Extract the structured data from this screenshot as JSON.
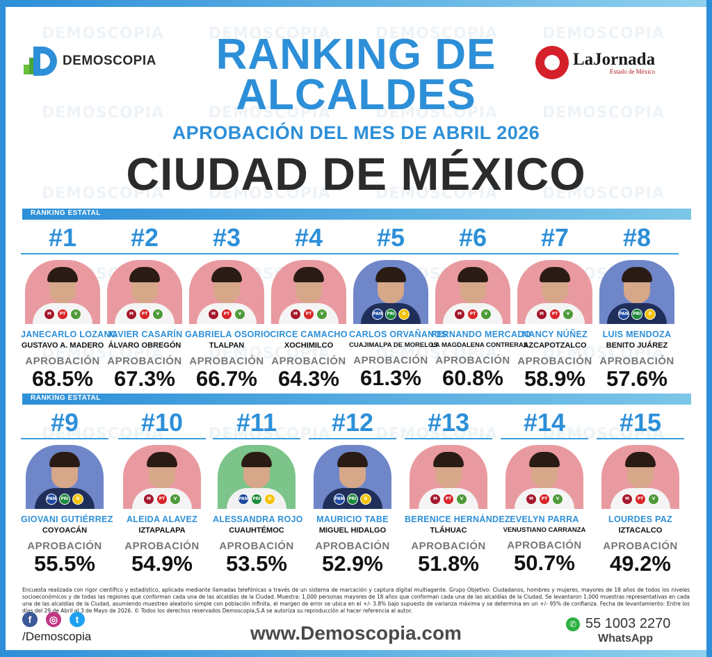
{
  "watermark_text": "DEMOSCOPIA",
  "header": {
    "brand_left": "DEMOSCOPIA",
    "brand_right_name": "LaJornada",
    "brand_right_sub": "Estado de México",
    "title": "RANKING DE ALCALDES",
    "subtitle": "APROBACIÓN DEL MES DE ABRIL 2026",
    "region": "CIUDAD DE MÉXICO"
  },
  "section_label": "RANKING ESTATAL",
  "approval_label": "APROBACIÓN",
  "colors": {
    "accent": "#2d8fd8",
    "dark": "#2b2b2b"
  },
  "mayors": [
    {
      "rank": "#1",
      "name": "JANECARLO LOZANO",
      "borough": "GUSTAVO A. MADERO",
      "approval": "68.5%",
      "party_bg": "#e99aa0",
      "parties": [
        "MORENA",
        "PT",
        "PVEM"
      ]
    },
    {
      "rank": "#2",
      "name": "JAVIER CASARÍN",
      "borough": "ÁLVARO OBREGÓN",
      "approval": "67.3%",
      "party_bg": "#e99aa0",
      "parties": [
        "MORENA",
        "PT",
        "PVEM"
      ]
    },
    {
      "rank": "#3",
      "name": "GABRIELA OSORIO",
      "borough": "TLALPAN",
      "approval": "66.7%",
      "party_bg": "#e99aa0",
      "parties": [
        "MORENA",
        "PT",
        "PVEM"
      ]
    },
    {
      "rank": "#4",
      "name": "CIRCE CAMACHO",
      "borough": "XOCHIMILCO",
      "approval": "64.3%",
      "party_bg": "#e99aa0",
      "parties": [
        "MORENA",
        "PT",
        "PVEM"
      ]
    },
    {
      "rank": "#5",
      "name": "CARLOS ORVAÑANOS",
      "borough": "CUAJIMALPA DE MORELOS",
      "approval": "61.3%",
      "party_bg": "#6f86c9",
      "parties": [
        "PAN",
        "PRI",
        "PRD"
      ]
    },
    {
      "rank": "#6",
      "name": "FERNANDO MERCADO",
      "borough": "LA MAGDALENA CONTRERAS",
      "approval": "60.8%",
      "party_bg": "#e99aa0",
      "parties": [
        "MORENA",
        "PT",
        "PVEM"
      ]
    },
    {
      "rank": "#7",
      "name": "NANCY NÚÑEZ",
      "borough": "AZCAPOTZALCO",
      "approval": "58.9%",
      "party_bg": "#e99aa0",
      "parties": [
        "MORENA",
        "PT",
        "PVEM"
      ]
    },
    {
      "rank": "#8",
      "name": "LUIS MENDOZA",
      "borough": "BENITO JUÁREZ",
      "approval": "57.6%",
      "party_bg": "#6f86c9",
      "parties": [
        "PAN",
        "PRI",
        "PRD"
      ]
    },
    {
      "rank": "#9",
      "name": "GIOVANI GUTIÉRREZ",
      "borough": "COYOACÁN",
      "approval": "55.5%",
      "party_bg": "#6f86c9",
      "parties": [
        "PAN",
        "PRI",
        "PRD"
      ]
    },
    {
      "rank": "#10",
      "name": "ALEIDA ALAVEZ",
      "borough": "IZTAPALAPA",
      "approval": "54.9%",
      "party_bg": "#e99aa0",
      "parties": [
        "MORENA",
        "PT",
        "PVEM"
      ]
    },
    {
      "rank": "#11",
      "name": "ALESSANDRA ROJO",
      "borough": "CUAUHTÉMOC",
      "approval": "53.5%",
      "party_bg": "#7cc48a",
      "parties": [
        "PAN",
        "PRI",
        "PRD"
      ]
    },
    {
      "rank": "#12",
      "name": "MAURICIO TABE",
      "borough": "MIGUEL HIDALGO",
      "approval": "52.9%",
      "party_bg": "#6f86c9",
      "parties": [
        "PAN",
        "PRI",
        "PRD"
      ]
    },
    {
      "rank": "#13",
      "name": "BERENICE HERNÁNDEZ",
      "borough": "TLÁHUAC",
      "approval": "51.8%",
      "party_bg": "#e99aa0",
      "parties": [
        "MORENA",
        "PT",
        "PVEM"
      ]
    },
    {
      "rank": "#14",
      "name": "EVELYN PARRA",
      "borough": "VENUSTIANO CARRANZA",
      "approval": "50.7%",
      "party_bg": "#e99aa0",
      "parties": [
        "MORENA",
        "PT",
        "PVEM"
      ]
    },
    {
      "rank": "#15",
      "name": "LOURDES PAZ",
      "borough": "IZTACALCO",
      "approval": "49.2%",
      "party_bg": "#e99aa0",
      "parties": [
        "MORENA",
        "PT",
        "PVEM"
      ]
    }
  ],
  "footer": {
    "disclaimer": "Encuesta realizada con rigor científico y estadístico, aplicada mediante llamadas telefónicas a través de un sistema de marcación y captura digital multiagente. Grupo Objetivo: Ciudadanos, hombres y mujeres, mayores de 18 años de todos los niveles socioeconómicos y de todas las regiones que conforman cada una de las alcaldías de la Ciudad. Muestra: 1,000 personas mayores de 18 años que conforman cada una de las alcaldías de la Ciudad. Se levantaron 1,000 muestras representativas en cada una de las alcaldías de la Ciudad, asumiendo muestreo aleatorio simple con población infinita, el margen de error se ubica en el +/- 3.8% bajo supuesto de varianza máxima y se determina en un +/- 95% de confianza. Fecha de levantamiento: Entre los días del 29 de Abril al 3 de Mayo de 2026. © Todos los derechos reservados Demoscopia,S.A se autoriza su reproducción al hacer referencia al autor.",
    "handle": "/Demoscopia",
    "website": "www.Demoscopia.com",
    "phone": "55 1003 2270",
    "phone_label": "WhatsApp"
  }
}
